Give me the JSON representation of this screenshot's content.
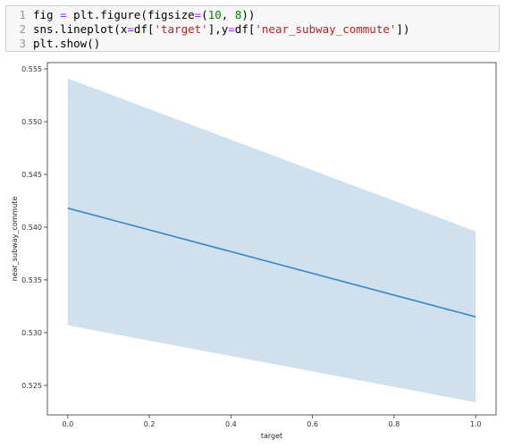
{
  "code": {
    "lines": [
      {
        "num": "1",
        "tokens": [
          {
            "t": "fig ",
            "c": "plain"
          },
          {
            "t": "=",
            "c": "op"
          },
          {
            "t": " plt.figure(figsize",
            "c": "plain"
          },
          {
            "t": "=",
            "c": "op"
          },
          {
            "t": "(",
            "c": "plain"
          },
          {
            "t": "10",
            "c": "num"
          },
          {
            "t": ", ",
            "c": "plain"
          },
          {
            "t": "8",
            "c": "num"
          },
          {
            "t": "))",
            "c": "plain"
          }
        ]
      },
      {
        "num": "2",
        "tokens": [
          {
            "t": "sns.lineplot(x",
            "c": "plain"
          },
          {
            "t": "=",
            "c": "op"
          },
          {
            "t": "df[",
            "c": "plain"
          },
          {
            "t": "'target'",
            "c": "str"
          },
          {
            "t": "],y",
            "c": "plain"
          },
          {
            "t": "=",
            "c": "op"
          },
          {
            "t": "df[",
            "c": "plain"
          },
          {
            "t": "'near_subway_commute'",
            "c": "str"
          },
          {
            "t": "])",
            "c": "plain"
          }
        ]
      },
      {
        "num": "3",
        "tokens": [
          {
            "t": "plt.show()",
            "c": "plain"
          }
        ]
      }
    ]
  },
  "chart_data": {
    "type": "line",
    "xlabel": "target",
    "ylabel": "near_subway_commute",
    "xlim": [
      -0.05,
      1.05
    ],
    "ylim": [
      0.5222,
      0.5556
    ],
    "x_ticks": [
      0.0,
      0.2,
      0.4,
      0.6,
      0.8,
      1.0
    ],
    "x_tick_labels": [
      "0.0",
      "0.2",
      "0.4",
      "0.6",
      "0.8",
      "1.0"
    ],
    "y_ticks": [
      0.525,
      0.53,
      0.535,
      0.54,
      0.545,
      0.55,
      0.555
    ],
    "y_tick_labels": [
      "0.525",
      "0.530",
      "0.535",
      "0.540",
      "0.545",
      "0.550",
      "0.555"
    ],
    "series": [
      {
        "x": [
          0.0,
          1.0
        ],
        "y": [
          0.5418,
          0.5315
        ],
        "ci_lower": [
          0.5307,
          0.5234
        ],
        "ci_upper": [
          0.5541,
          0.5396
        ]
      }
    ],
    "colors": {
      "line": "#3a86c8",
      "band": "#cfe0ee",
      "axes": "#333333"
    },
    "grid": false,
    "legend": "none"
  }
}
